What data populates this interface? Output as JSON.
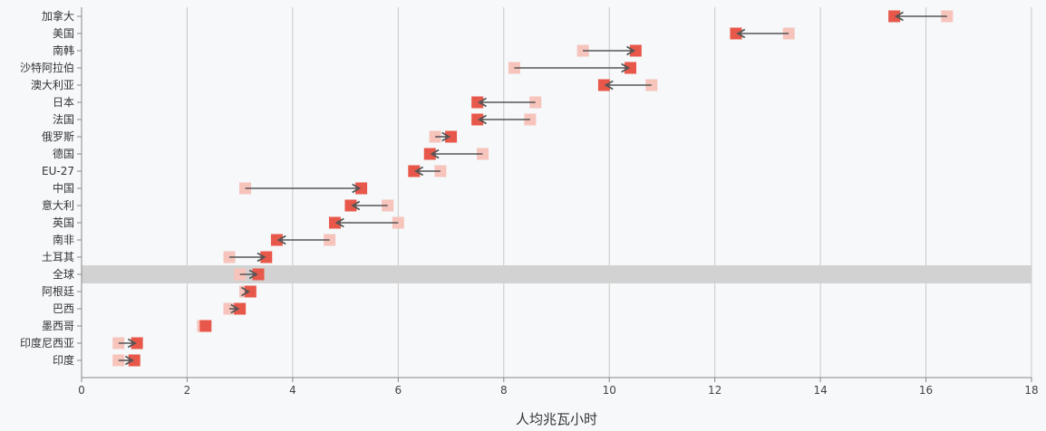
{
  "chart_data": {
    "type": "dumbbell",
    "xlabel": "人均兆瓦小时",
    "xlim": [
      0,
      18
    ],
    "xticks": [
      0,
      2,
      4,
      6,
      8,
      10,
      12,
      14,
      16,
      18
    ],
    "highlight": "全球",
    "grid": true,
    "colors": {
      "end": "#e8584a",
      "start": "#f7c4bc",
      "arrow": "#555555",
      "highlight_band": "#d2d2d2"
    },
    "rows": [
      {
        "name": "加拿大",
        "start": 16.4,
        "end": 15.4
      },
      {
        "name": "美国",
        "start": 13.4,
        "end": 12.4
      },
      {
        "name": "南韩",
        "start": 9.5,
        "end": 10.5
      },
      {
        "name": "沙特阿拉伯",
        "start": 8.2,
        "end": 10.4
      },
      {
        "name": "澳大利亚",
        "start": 10.8,
        "end": 9.9
      },
      {
        "name": "日本",
        "start": 8.6,
        "end": 7.5
      },
      {
        "name": "法国",
        "start": 8.5,
        "end": 7.5
      },
      {
        "name": "俄罗斯",
        "start": 6.7,
        "end": 7.0
      },
      {
        "name": "德国",
        "start": 7.6,
        "end": 6.6
      },
      {
        "name": "EU-27",
        "start": 6.8,
        "end": 6.3
      },
      {
        "name": "中国",
        "start": 3.1,
        "end": 5.3
      },
      {
        "name": "意大利",
        "start": 5.8,
        "end": 5.1
      },
      {
        "name": "英国",
        "start": 6.0,
        "end": 4.8
      },
      {
        "name": "南非",
        "start": 4.7,
        "end": 3.7
      },
      {
        "name": "土耳其",
        "start": 2.8,
        "end": 3.5
      },
      {
        "name": "全球",
        "start": 3.0,
        "end": 3.35
      },
      {
        "name": "阿根廷",
        "start": 3.1,
        "end": 3.2
      },
      {
        "name": "巴西",
        "start": 2.8,
        "end": 3.0
      },
      {
        "name": "墨西哥",
        "start": 2.3,
        "end": 2.35
      },
      {
        "name": "印度尼西亚",
        "start": 0.7,
        "end": 1.05
      },
      {
        "name": "印度",
        "start": 0.7,
        "end": 1.0
      }
    ]
  }
}
